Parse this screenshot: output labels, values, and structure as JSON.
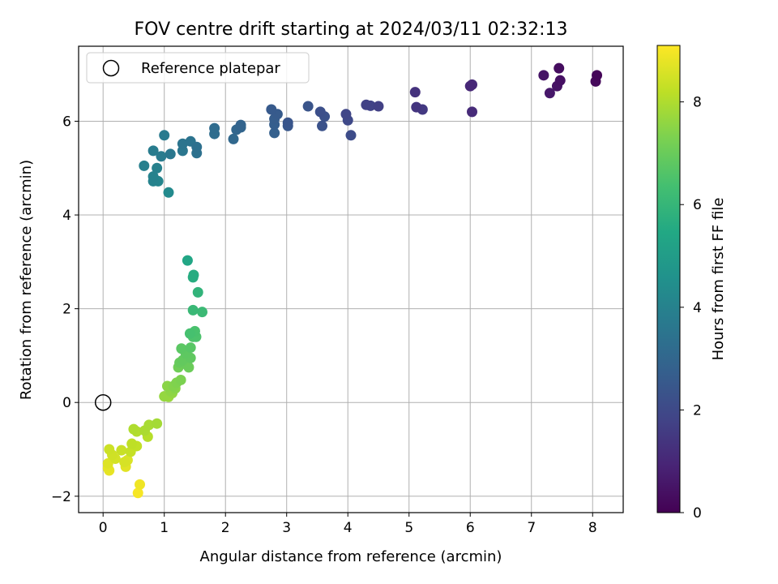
{
  "chart_data": {
    "type": "scatter",
    "title": "FOV centre drift starting at 2024/03/11 02:32:13",
    "xlabel": "Angular distance from reference (arcmin)",
    "ylabel": "Rotation from reference (arcmin)",
    "xlim": [
      -0.4,
      8.5
    ],
    "ylim": [
      -2.35,
      7.6
    ],
    "xticks": [
      0,
      1,
      2,
      3,
      4,
      5,
      6,
      7,
      8
    ],
    "yticks": [
      -2,
      0,
      2,
      4,
      6
    ],
    "ytick_labels": [
      "−2",
      "0",
      "2",
      "4",
      "6"
    ],
    "grid": true,
    "legend": {
      "placement": "upper-left",
      "entries": [
        "Reference platepar"
      ]
    },
    "colorbar": {
      "label": "Hours from first FF file",
      "colormap": "viridis",
      "range": [
        0,
        9.1
      ],
      "ticks": [
        0,
        2,
        4,
        6,
        8
      ]
    },
    "reference_point": {
      "x": 0,
      "y": 0
    },
    "points": [
      {
        "x": 8.07,
        "y": 6.98,
        "h": 0.1
      },
      {
        "x": 8.05,
        "y": 6.85,
        "h": 0.2
      },
      {
        "x": 7.45,
        "y": 7.13,
        "h": 0.3
      },
      {
        "x": 7.47,
        "y": 6.87,
        "h": 0.4
      },
      {
        "x": 7.42,
        "y": 6.75,
        "h": 0.45
      },
      {
        "x": 7.2,
        "y": 6.98,
        "h": 0.5
      },
      {
        "x": 7.3,
        "y": 6.6,
        "h": 0.6
      },
      {
        "x": 6.0,
        "y": 6.75,
        "h": 1.0
      },
      {
        "x": 6.03,
        "y": 6.78,
        "h": 1.05
      },
      {
        "x": 6.03,
        "y": 6.2,
        "h": 1.1
      },
      {
        "x": 5.1,
        "y": 6.62,
        "h": 1.3
      },
      {
        "x": 5.12,
        "y": 6.3,
        "h": 1.4
      },
      {
        "x": 5.22,
        "y": 6.25,
        "h": 1.5
      },
      {
        "x": 4.5,
        "y": 6.32,
        "h": 1.7
      },
      {
        "x": 4.3,
        "y": 6.35,
        "h": 1.75
      },
      {
        "x": 4.37,
        "y": 6.33,
        "h": 1.8
      },
      {
        "x": 3.97,
        "y": 6.15,
        "h": 1.9
      },
      {
        "x": 4.0,
        "y": 6.02,
        "h": 2.0
      },
      {
        "x": 4.05,
        "y": 5.7,
        "h": 2.1
      },
      {
        "x": 3.55,
        "y": 6.2,
        "h": 2.2
      },
      {
        "x": 3.62,
        "y": 6.1,
        "h": 2.25
      },
      {
        "x": 3.58,
        "y": 5.9,
        "h": 2.3
      },
      {
        "x": 3.35,
        "y": 6.32,
        "h": 2.35
      },
      {
        "x": 3.02,
        "y": 5.97,
        "h": 2.4
      },
      {
        "x": 3.02,
        "y": 5.9,
        "h": 2.45
      },
      {
        "x": 2.75,
        "y": 6.25,
        "h": 2.55
      },
      {
        "x": 2.85,
        "y": 6.15,
        "h": 2.6
      },
      {
        "x": 2.8,
        "y": 6.05,
        "h": 2.65
      },
      {
        "x": 2.8,
        "y": 5.93,
        "h": 2.7
      },
      {
        "x": 2.8,
        "y": 5.75,
        "h": 2.75
      },
      {
        "x": 2.25,
        "y": 5.92,
        "h": 2.9
      },
      {
        "x": 2.25,
        "y": 5.87,
        "h": 2.95
      },
      {
        "x": 2.18,
        "y": 5.82,
        "h": 3.0
      },
      {
        "x": 2.13,
        "y": 5.62,
        "h": 3.05
      },
      {
        "x": 1.82,
        "y": 5.85,
        "h": 3.2
      },
      {
        "x": 1.82,
        "y": 5.73,
        "h": 3.25
      },
      {
        "x": 1.53,
        "y": 5.45,
        "h": 3.35
      },
      {
        "x": 1.53,
        "y": 5.32,
        "h": 3.4
      },
      {
        "x": 1.43,
        "y": 5.57,
        "h": 3.45
      },
      {
        "x": 1.3,
        "y": 5.52,
        "h": 3.5
      },
      {
        "x": 1.3,
        "y": 5.37,
        "h": 3.55
      },
      {
        "x": 1.1,
        "y": 5.3,
        "h": 3.6
      },
      {
        "x": 1.0,
        "y": 5.7,
        "h": 3.7
      },
      {
        "x": 0.95,
        "y": 5.25,
        "h": 3.75
      },
      {
        "x": 0.82,
        "y": 5.37,
        "h": 3.8
      },
      {
        "x": 0.67,
        "y": 5.05,
        "h": 3.9
      },
      {
        "x": 0.88,
        "y": 5.0,
        "h": 3.95
      },
      {
        "x": 0.82,
        "y": 4.82,
        "h": 4.0
      },
      {
        "x": 0.82,
        "y": 4.72,
        "h": 4.05
      },
      {
        "x": 0.9,
        "y": 4.72,
        "h": 4.1
      },
      {
        "x": 1.07,
        "y": 4.48,
        "h": 4.3
      },
      {
        "x": 1.38,
        "y": 3.03,
        "h": 5.4
      },
      {
        "x": 1.48,
        "y": 2.72,
        "h": 5.6
      },
      {
        "x": 1.47,
        "y": 2.67,
        "h": 5.65
      },
      {
        "x": 1.55,
        "y": 2.35,
        "h": 5.9
      },
      {
        "x": 1.47,
        "y": 1.97,
        "h": 6.1
      },
      {
        "x": 1.62,
        "y": 1.93,
        "h": 6.15
      },
      {
        "x": 1.42,
        "y": 1.47,
        "h": 6.4
      },
      {
        "x": 1.5,
        "y": 1.52,
        "h": 6.45
      },
      {
        "x": 1.52,
        "y": 1.4,
        "h": 6.5
      },
      {
        "x": 1.47,
        "y": 1.4,
        "h": 6.55
      },
      {
        "x": 1.43,
        "y": 1.17,
        "h": 6.7
      },
      {
        "x": 1.28,
        "y": 1.15,
        "h": 6.75
      },
      {
        "x": 1.35,
        "y": 1.05,
        "h": 6.8
      },
      {
        "x": 1.43,
        "y": 0.95,
        "h": 6.85
      },
      {
        "x": 1.3,
        "y": 0.9,
        "h": 6.9
      },
      {
        "x": 1.25,
        "y": 0.85,
        "h": 6.95
      },
      {
        "x": 1.37,
        "y": 0.8,
        "h": 7.0
      },
      {
        "x": 1.4,
        "y": 0.75,
        "h": 7.05
      },
      {
        "x": 1.23,
        "y": 0.75,
        "h": 7.1
      },
      {
        "x": 1.27,
        "y": 0.48,
        "h": 7.3
      },
      {
        "x": 1.2,
        "y": 0.42,
        "h": 7.35
      },
      {
        "x": 1.15,
        "y": 0.35,
        "h": 7.4
      },
      {
        "x": 1.18,
        "y": 0.3,
        "h": 7.45
      },
      {
        "x": 1.05,
        "y": 0.35,
        "h": 7.5
      },
      {
        "x": 1.1,
        "y": 0.25,
        "h": 7.55
      },
      {
        "x": 1.13,
        "y": 0.2,
        "h": 7.6
      },
      {
        "x": 1.0,
        "y": 0.13,
        "h": 7.65
      },
      {
        "x": 1.07,
        "y": 0.12,
        "h": 7.7
      },
      {
        "x": 0.88,
        "y": -0.45,
        "h": 7.85
      },
      {
        "x": 0.75,
        "y": -0.48,
        "h": 7.9
      },
      {
        "x": 0.68,
        "y": -0.6,
        "h": 7.95
      },
      {
        "x": 0.5,
        "y": -0.57,
        "h": 8.0
      },
      {
        "x": 0.55,
        "y": -0.62,
        "h": 8.05
      },
      {
        "x": 0.73,
        "y": -0.73,
        "h": 8.1
      },
      {
        "x": 0.47,
        "y": -0.88,
        "h": 8.2
      },
      {
        "x": 0.55,
        "y": -0.93,
        "h": 8.25
      },
      {
        "x": 0.45,
        "y": -1.05,
        "h": 8.3
      },
      {
        "x": 0.3,
        "y": -1.02,
        "h": 8.35
      },
      {
        "x": 0.1,
        "y": -1.0,
        "h": 8.4
      },
      {
        "x": 0.15,
        "y": -1.12,
        "h": 8.45
      },
      {
        "x": 0.2,
        "y": -1.2,
        "h": 8.5
      },
      {
        "x": 0.35,
        "y": -1.27,
        "h": 8.55
      },
      {
        "x": 0.4,
        "y": -1.23,
        "h": 8.6
      },
      {
        "x": 0.08,
        "y": -1.3,
        "h": 8.65
      },
      {
        "x": 0.37,
        "y": -1.37,
        "h": 8.7
      },
      {
        "x": 0.08,
        "y": -1.4,
        "h": 8.75
      },
      {
        "x": 0.1,
        "y": -1.45,
        "h": 8.8
      },
      {
        "x": 0.6,
        "y": -1.75,
        "h": 8.9
      },
      {
        "x": 0.57,
        "y": -1.93,
        "h": 9.0
      }
    ]
  }
}
